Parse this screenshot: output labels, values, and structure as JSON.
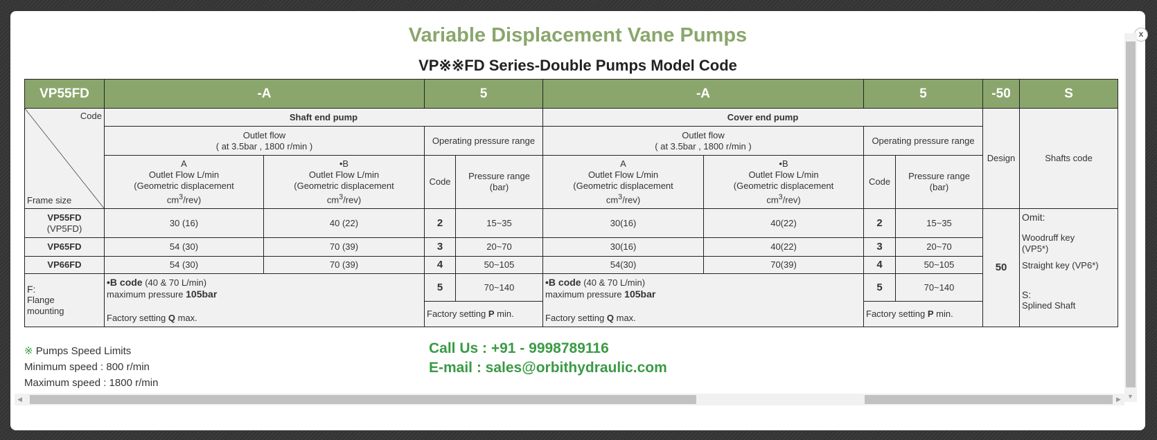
{
  "modal": {
    "title": "Variable Displacement Vane Pumps",
    "subtitle": "VP※※FD Series-Double Pumps Model Code",
    "close_label": "x"
  },
  "colors": {
    "accent": "#8aa66c",
    "contact": "#3a9a45"
  },
  "table": {
    "header": [
      "VP55FD",
      "-A",
      "5",
      "-A",
      "5",
      "-50",
      "S"
    ],
    "code_label": "Code",
    "frame_label": "Frame size",
    "shaft_end": "Shaft end pump",
    "cover_end": "Cover end pump",
    "design": "Design",
    "shafts_code": "Shafts code",
    "outlet_flow": "Outlet flow",
    "outlet_cond": "( at 3.5bar , 1800 r/min )",
    "op_pressure": "Operating pressure range",
    "col_a": "A",
    "col_b": "•B",
    "flow_desc": "Outlet Flow L/min",
    "geo_desc": "(Geometric displacement",
    "unit_cm": "cm",
    "unit_sup": "3",
    "unit_rev": "/rev)",
    "code_col": "Code",
    "pressure_col": "Pressure range (bar)",
    "rows": [
      {
        "frame": "VP55FD",
        "frame_sub": "(VP5FD)",
        "a": "30 (16)",
        "b": "40 (22)",
        "code": "2",
        "pressure": "15~35",
        "ca": "30(16)",
        "cb": "40(22)",
        "ccode": "2",
        "cpressure": "15~35"
      },
      {
        "frame": "VP65FD",
        "a": "54 (30)",
        "b": "70 (39)",
        "code": "3",
        "pressure": "20~70",
        "ca": "30(16)",
        "cb": "40(22)",
        "ccode": "3",
        "cpressure": "20~70"
      },
      {
        "frame": "VP66FD",
        "a": "54 (30)",
        "b": "70 (39)",
        "code": "4",
        "pressure": "50~105",
        "ca": "54(30)",
        "cb": "70(39)",
        "ccode": "4",
        "cpressure": "50~105"
      }
    ],
    "last_code": "5",
    "last_pressure": "70~140",
    "design_value": "50",
    "flange_code": "F:",
    "flange_desc": "Flange mounting",
    "bcode_label": "•B code",
    "bcode_note": " (40 & 70 L/min)",
    "max_pressure_text": "maximum pressure ",
    "max_pressure_value": "105bar",
    "factory_q_pre": "Factory setting ",
    "factory_q_bold": "Q",
    "factory_q_post": " max.",
    "factory_p_pre": "Factory setting ",
    "factory_p_bold": "P",
    "factory_p_post": " min.",
    "omit_label": "Omit:",
    "woodruff": "Woodruff key (VP5*)",
    "straight": "Straight key (VP6*)",
    "s_label": "S:",
    "splined": "Splined Shaft"
  },
  "footer": {
    "speed_mark": "※",
    "speed_title": " Pumps Speed Limits",
    "min_speed": "Minimum speed : 800 r/min",
    "max_speed": "Maximum speed : 1800 r/min",
    "call": "Call Us : +91 - 9998789116",
    "email": "E-mail : sales@orbithydraulic.com"
  }
}
